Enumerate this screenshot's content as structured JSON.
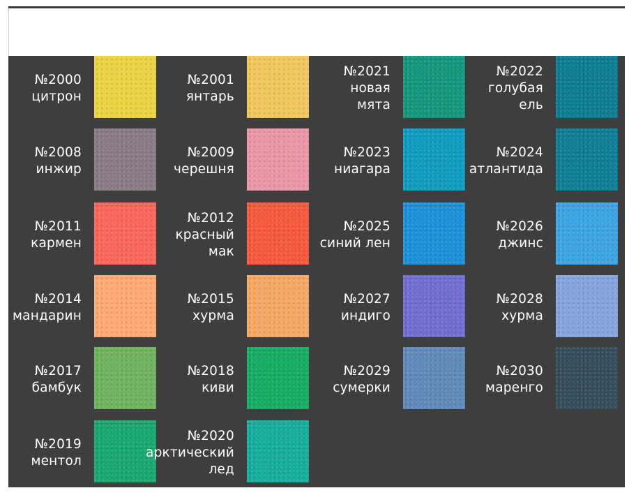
{
  "colors": [
    {
      "code": "№2000",
      "name": [
        "цитрон"
      ],
      "hex": "#ead340"
    },
    {
      "code": "№2001",
      "name": [
        "янтарь"
      ],
      "hex": "#f1c65a"
    },
    {
      "code": "№2021",
      "name": [
        "новая",
        "мята"
      ],
      "hex": "#12967b"
    },
    {
      "code": "№2022",
      "name": [
        "голубая",
        "ель"
      ],
      "hex": "#0a7b91"
    },
    {
      "code": "№2008",
      "name": [
        "инжир"
      ],
      "hex": "#877a86"
    },
    {
      "code": "№2009",
      "name": [
        "черешня"
      ],
      "hex": "#eb95a4"
    },
    {
      "code": "№2023",
      "name": [
        "ниагара"
      ],
      "hex": "#0d9bbf"
    },
    {
      "code": "№2024",
      "name": [
        "атлантида"
      ],
      "hex": "#0b7d95"
    },
    {
      "code": "№2011",
      "name": [
        "кармен"
      ],
      "hex": "#fb6458"
    },
    {
      "code": "№2012",
      "name": [
        "красный",
        "мак"
      ],
      "hex": "#f6573a"
    },
    {
      "code": "№2025",
      "name": [
        "синий лен"
      ],
      "hex": "#1990d9"
    },
    {
      "code": "№2026",
      "name": [
        "джинс"
      ],
      "hex": "#3aa4e4"
    },
    {
      "code": "№2014",
      "name": [
        "мандарин"
      ],
      "hex": "#fea873"
    },
    {
      "code": "№2015",
      "name": [
        "хурма"
      ],
      "hex": "#f6a763"
    },
    {
      "code": "№2027",
      "name": [
        "индиго"
      ],
      "hex": "#6e6ccf"
    },
    {
      "code": "№2028",
      "name": [
        "хурма"
      ],
      "hex": "#85a3dc"
    },
    {
      "code": "№2017",
      "name": [
        "бамбук"
      ],
      "hex": "#6eb25c"
    },
    {
      "code": "№2018",
      "name": [
        "киви"
      ],
      "hex": "#13ac61"
    },
    {
      "code": "№2029",
      "name": [
        "сумерки"
      ],
      "hex": "#5d89ba"
    },
    {
      "code": "№2030",
      "name": [
        "маренго"
      ],
      "hex": "#334a5a"
    },
    {
      "code": "№2019",
      "name": [
        "ментол"
      ],
      "hex": "#16a86e"
    },
    {
      "code": "№2020",
      "name": [
        "арктический",
        "лед"
      ],
      "hex": "#13ad9d"
    }
  ]
}
